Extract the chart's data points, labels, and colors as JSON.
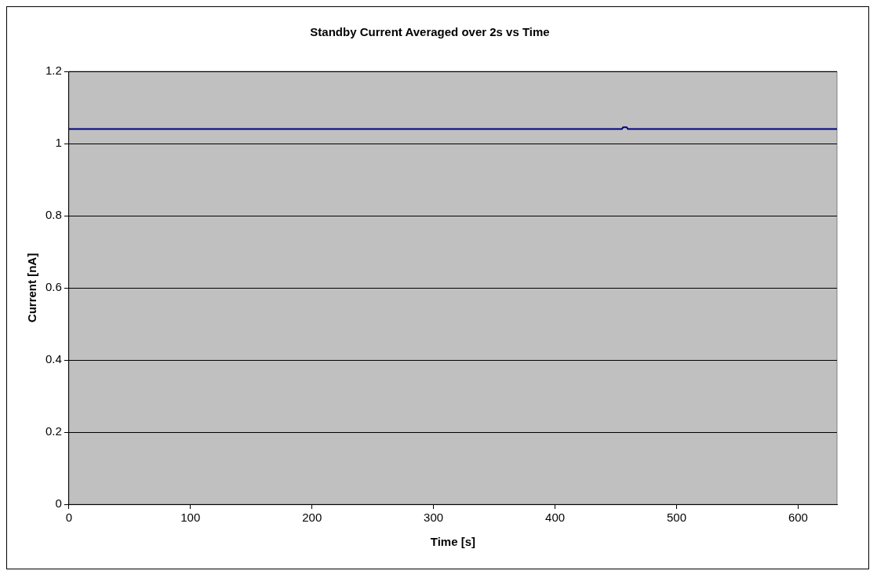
{
  "chart_data": {
    "type": "line",
    "title": "Standby Current Averaged over 2s vs Time",
    "xlabel": "Time [s]",
    "ylabel": "Current [nA]",
    "x": [
      0,
      455,
      456,
      459,
      460,
      632
    ],
    "series": [
      {
        "color": "#000080",
        "values": [
          1.04,
          1.04,
          1.045,
          1.045,
          1.04,
          1.04
        ]
      }
    ],
    "xlim": [
      0,
      632
    ],
    "xticks": [
      0,
      100,
      200,
      300,
      400,
      500,
      600
    ],
    "ylim": [
      0,
      1.2
    ],
    "yticks": [
      0,
      0.2,
      0.4,
      0.6,
      0.8,
      1,
      1.2
    ],
    "grid": "y",
    "legend": false,
    "marker": "none",
    "line_style": "solid"
  }
}
